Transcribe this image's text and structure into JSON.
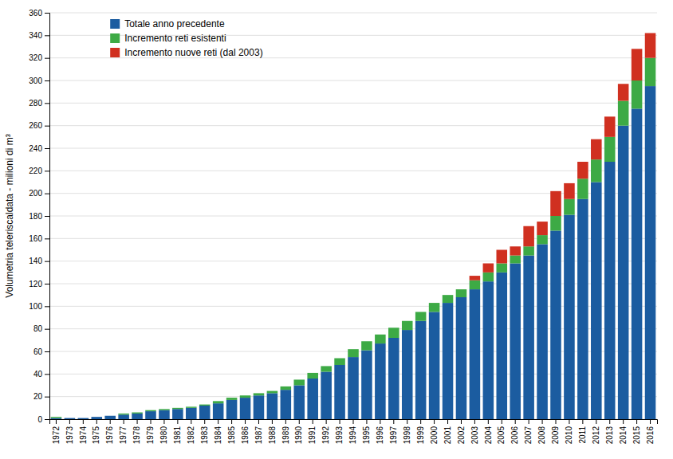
{
  "chart_data": {
    "type": "bar",
    "stacked": true,
    "categories": [
      "1972",
      "1973",
      "1974",
      "1975",
      "1976",
      "1977",
      "1978",
      "1979",
      "1980",
      "1981",
      "1982",
      "1983",
      "1984",
      "1985",
      "1986",
      "1987",
      "1988",
      "1989",
      "1990",
      "1991",
      "1992",
      "1993",
      "1994",
      "1995",
      "1996",
      "1997",
      "1998",
      "1999",
      "2000",
      "2001",
      "2002",
      "2003",
      "2004",
      "2005",
      "2006",
      "2007",
      "2008",
      "2009",
      "2010",
      "2011",
      "2012",
      "2013",
      "2014",
      "2015",
      "2016"
    ],
    "series": [
      {
        "name": "Totale anno precedente",
        "color": "#1B5CA0",
        "values": [
          1,
          1,
          1,
          2,
          3,
          4,
          5,
          7,
          8,
          9,
          10,
          12,
          14,
          17,
          19,
          21,
          23,
          26,
          30,
          36,
          42,
          48,
          55,
          61,
          67,
          72,
          79,
          87,
          95,
          103,
          108,
          115,
          122,
          130,
          138,
          145,
          155,
          167,
          181,
          195,
          210,
          228,
          260,
          275,
          295
        ]
      },
      {
        "name": "Incremento reti esistenti",
        "color": "#3DAA45",
        "values": [
          1,
          0,
          0,
          0,
          0,
          1,
          1,
          1,
          1,
          1,
          1,
          1,
          2,
          2,
          2,
          2,
          2,
          3,
          5,
          5,
          5,
          6,
          7,
          8,
          8,
          9,
          8,
          8,
          8,
          7,
          7,
          8,
          8,
          8,
          7,
          8,
          8,
          13,
          14,
          18,
          20,
          22,
          22,
          25,
          25
        ]
      },
      {
        "name": "Incremento nuove reti (dal 2003)",
        "color": "#D03020",
        "values": [
          0,
          0,
          0,
          0,
          0,
          0,
          0,
          0,
          0,
          0,
          0,
          0,
          0,
          0,
          0,
          0,
          0,
          0,
          0,
          0,
          0,
          0,
          0,
          0,
          0,
          0,
          0,
          0,
          0,
          0,
          0,
          4,
          8,
          12,
          8,
          18,
          12,
          22,
          14,
          15,
          18,
          18,
          15,
          28,
          22
        ]
      }
    ],
    "ylabel": "Volumetria teleriscaldata  -  milioni di m³",
    "ylim": [
      0,
      360
    ],
    "yticks": [
      0,
      20,
      40,
      60,
      80,
      100,
      120,
      140,
      160,
      180,
      200,
      220,
      240,
      260,
      280,
      300,
      320,
      340,
      360
    ],
    "grid": true,
    "legend": "upper left"
  }
}
